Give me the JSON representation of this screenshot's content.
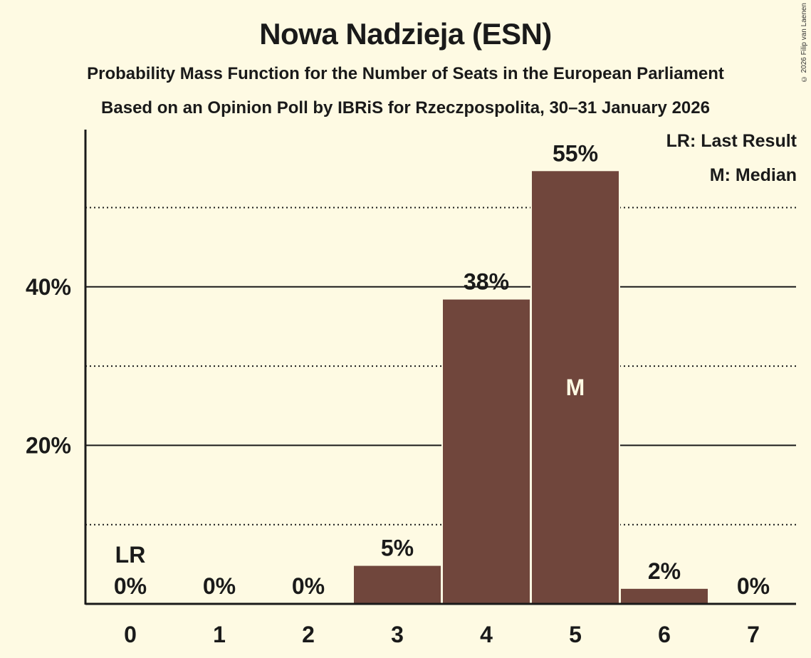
{
  "header": {
    "title": "Nowa Nadzieja (ESN)",
    "subtitle": "Probability Mass Function for the Number of Seats in the European Parliament",
    "source_line": "Based on an Opinion Poll by IBRiS for Rzeczpospolita, 30–31 January 2026",
    "copyright": "© 2026 Filip van Laenen"
  },
  "legend": {
    "lr": "LR: Last Result",
    "median": "M: Median"
  },
  "colors": {
    "background": "#fefae3",
    "bar": "#70463c",
    "text": "#1a1a1a"
  },
  "y_axis": {
    "ticks": [
      {
        "value": 20,
        "label": "20%"
      },
      {
        "value": 40,
        "label": "40%"
      }
    ],
    "dotted_lines": [
      10,
      30,
      50
    ]
  },
  "bars": [
    {
      "seats": "0",
      "value": 0,
      "label": "0%",
      "marker": "LR"
    },
    {
      "seats": "1",
      "value": 0,
      "label": "0%",
      "marker": ""
    },
    {
      "seats": "2",
      "value": 0,
      "label": "0%",
      "marker": ""
    },
    {
      "seats": "3",
      "value": 4.8,
      "label": "5%",
      "marker": ""
    },
    {
      "seats": "4",
      "value": 38.4,
      "label": "38%",
      "marker": ""
    },
    {
      "seats": "5",
      "value": 54.6,
      "label": "55%",
      "marker": "M"
    },
    {
      "seats": "6",
      "value": 1.9,
      "label": "2%",
      "marker": ""
    },
    {
      "seats": "7",
      "value": 0,
      "label": "0%",
      "marker": ""
    }
  ],
  "chart_data": {
    "type": "bar",
    "title": "Nowa Nadzieja (ESN)",
    "subtitle": "Probability Mass Function for the Number of Seats in the European Parliament",
    "caption": "Based on an Opinion Poll by IBRiS for Rzeczpospolita, 30–31 January 2026",
    "categories": [
      "0",
      "1",
      "2",
      "3",
      "4",
      "5",
      "6",
      "7"
    ],
    "values": [
      0,
      0,
      0,
      4.8,
      38.4,
      54.6,
      1.9,
      0
    ],
    "data_labels": [
      "0%",
      "0%",
      "0%",
      "5%",
      "38%",
      "55%",
      "2%",
      "0%"
    ],
    "annotations": [
      {
        "category": "0",
        "text": "LR",
        "meaning": "Last Result"
      },
      {
        "category": "5",
        "text": "M",
        "meaning": "Median"
      }
    ],
    "legend": [
      "LR: Last Result",
      "M: Median"
    ],
    "xlabel": "",
    "ylabel": "",
    "yticks": [
      "20%",
      "40%"
    ],
    "ylim": [
      0,
      60
    ],
    "grid": {
      "solid": [
        20,
        40
      ],
      "dotted": [
        10,
        30,
        50
      ]
    }
  }
}
